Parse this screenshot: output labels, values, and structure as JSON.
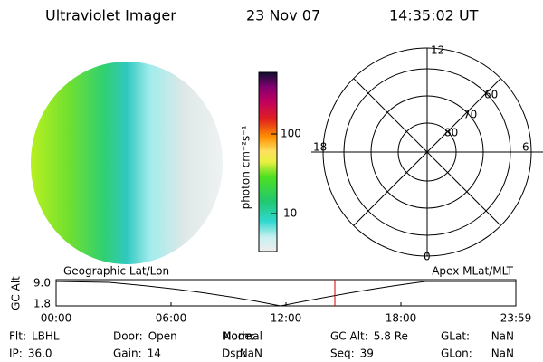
{
  "header": {
    "title": "Ultraviolet Imager",
    "date": "23 Nov 07",
    "time": "14:35:02 UT"
  },
  "colorbar": {
    "label": "photon cm⁻²s⁻¹",
    "ticks": [
      "100",
      "10"
    ]
  },
  "polar": {
    "mlt": [
      "12",
      "18",
      "6",
      "0"
    ],
    "lat": [
      "60",
      "70",
      "80"
    ]
  },
  "altitude": {
    "left_title": "Geographic Lat/Lon",
    "right_title": "Apex MLat/MLT",
    "ylabel": "GC Alt",
    "yticks": [
      "9.0",
      "1.8"
    ],
    "xticks": [
      "00:00",
      "06:00",
      "12:00",
      "18:00",
      "23:59"
    ]
  },
  "info": [
    [
      {
        "label": "Flt:",
        "value": "LBHL"
      },
      {
        "label": "Door:",
        "value": "Open"
      },
      {
        "label": "Mode:",
        "value": "Normal"
      },
      {
        "label": "GC Alt:",
        "value": "5.8 Re"
      },
      {
        "label": "GLat:",
        "value": "NaN"
      }
    ],
    [
      {
        "label": "IP:",
        "value": "36.0"
      },
      {
        "label": "Gain:",
        "value": "14"
      },
      {
        "label": "Dsp:",
        "value": "NaN"
      },
      {
        "label": "Seq:",
        "value": "39"
      },
      {
        "label": "GLon:",
        "value": "NaN"
      }
    ]
  ]
}
